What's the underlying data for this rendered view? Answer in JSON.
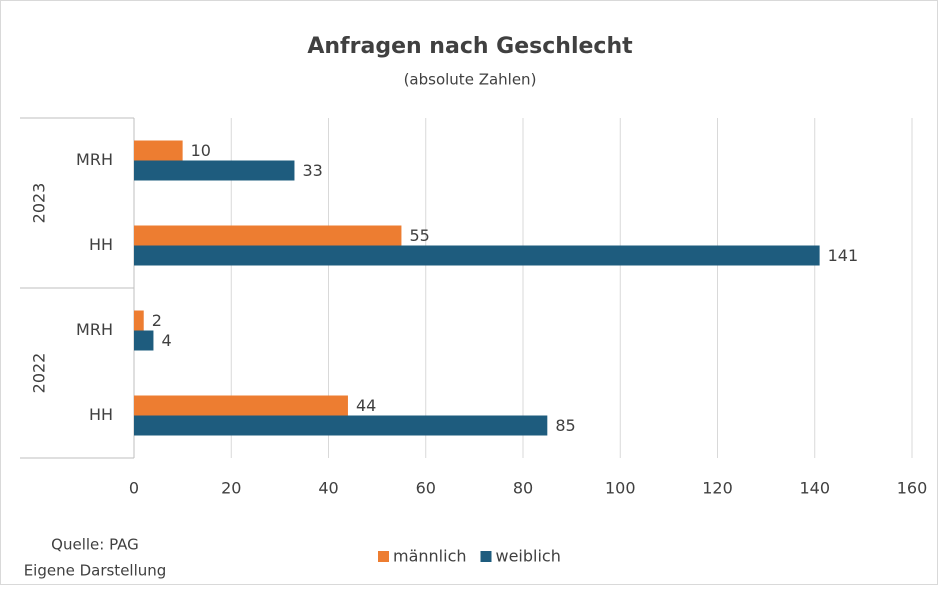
{
  "chart_data": {
    "type": "hbar",
    "title": "Anfragen nach Geschlecht",
    "subtitle": "(absolute Zahlen)",
    "categories": [
      "MRH",
      "HH",
      "MRH",
      "HH"
    ],
    "group_labels": [
      "2023",
      "2022"
    ],
    "series": [
      {
        "name": "männlich",
        "color": "#ed7d31",
        "values": [
          10,
          55,
          2,
          44
        ]
      },
      {
        "name": "weiblich",
        "color": "#1e5c7e",
        "values": [
          33,
          141,
          4,
          85
        ]
      }
    ],
    "xlim": [
      0,
      160
    ],
    "xticks": [
      0,
      20,
      40,
      60,
      80,
      100,
      120,
      140,
      160
    ],
    "grid": true,
    "legend": "bottom",
    "notes": [
      "Quelle: PAG",
      "Eigene Darstellung"
    ]
  }
}
